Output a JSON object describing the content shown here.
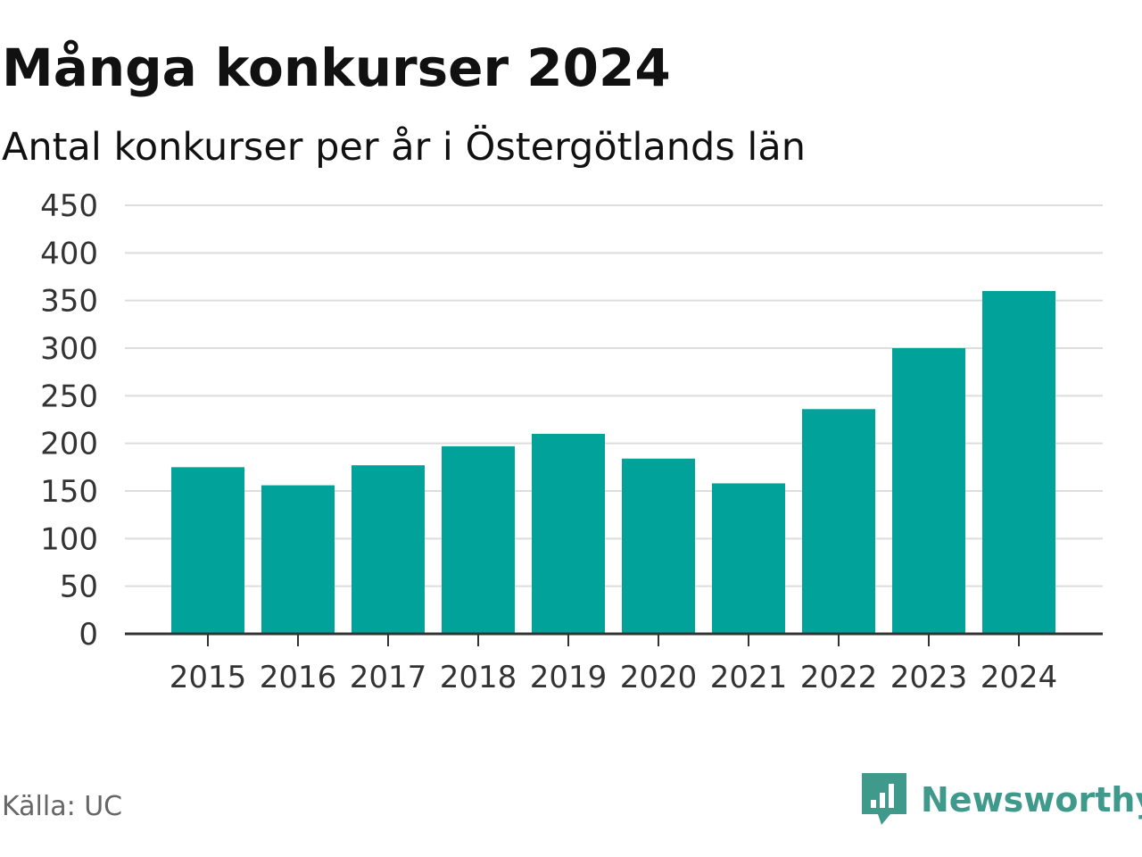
{
  "header": {
    "title": "Många konkurser 2024",
    "subtitle": "Antal konkurser per år i Östergötlands län"
  },
  "footer": {
    "source": "Källa: UC",
    "brand": "Newsworthy",
    "brand_icon": "newsworthy-logo-icon",
    "brand_color": "#3f9a8c"
  },
  "chart_data": {
    "type": "bar",
    "categories": [
      "2015",
      "2016",
      "2017",
      "2018",
      "2019",
      "2020",
      "2021",
      "2022",
      "2023",
      "2024"
    ],
    "values": [
      175,
      156,
      177,
      197,
      210,
      184,
      158,
      236,
      300,
      360
    ],
    "ylim": [
      0,
      450
    ],
    "yticks": [
      0,
      50,
      100,
      150,
      200,
      250,
      300,
      350,
      400,
      450
    ],
    "grid": true,
    "bar_color": "#00a29a"
  }
}
